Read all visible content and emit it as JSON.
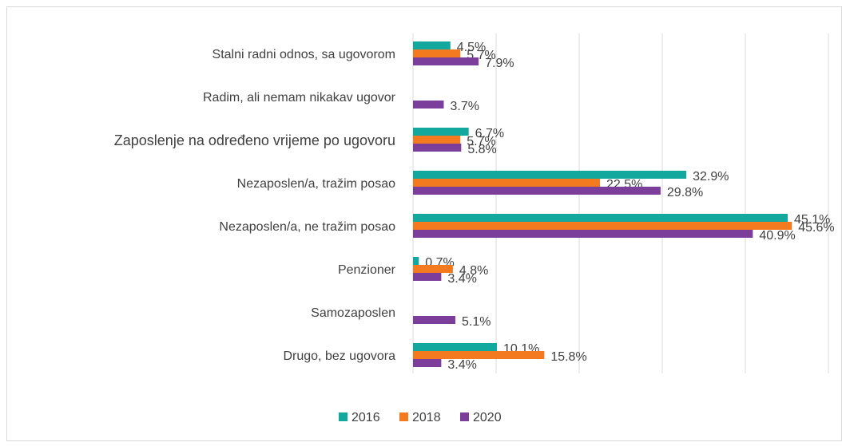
{
  "chart_data": {
    "type": "bar",
    "orientation": "horizontal",
    "categories": [
      "Stalni radni odnos, sa ugovorom",
      "Radim, ali nemam nikakav ugovor",
      "Zaposlenje na određeno vrijeme po ugovoru",
      "Nezaposlen/a, tražim posao",
      "Nezaposlen/a, ne tražim posao",
      "Penzioner",
      "Samozaposlen",
      "Drugo, bez ugovora"
    ],
    "series": [
      {
        "name": "2016",
        "color": "#13a89e",
        "values": [
          4.5,
          null,
          6.7,
          32.9,
          45.1,
          0.7,
          null,
          10.1
        ],
        "value_labels": [
          "4.5%",
          null,
          "6.7%",
          "32.9%",
          "45.1%",
          "0.7%",
          null,
          "10.1%"
        ]
      },
      {
        "name": "2018",
        "color": "#f47a20",
        "values": [
          5.7,
          null,
          5.7,
          22.5,
          45.6,
          4.8,
          null,
          15.8
        ],
        "value_labels": [
          "5.7%",
          null,
          "5.7%",
          "22.5%",
          "45.6%",
          "4.8%",
          null,
          "15.8%"
        ]
      },
      {
        "name": "2020",
        "color": "#7b3f9b",
        "values": [
          7.9,
          3.7,
          5.8,
          29.8,
          40.9,
          3.4,
          5.1,
          3.4
        ],
        "value_labels": [
          "7.9%",
          "3.7%",
          "5.8%",
          "29.8%",
          "40.9%",
          "3.4%",
          "5.1%",
          "3.4%"
        ]
      }
    ],
    "xlim": [
      0,
      50
    ],
    "xticks": [
      0,
      10,
      20,
      30,
      40,
      50
    ],
    "grid": true,
    "legend": "bottom"
  }
}
